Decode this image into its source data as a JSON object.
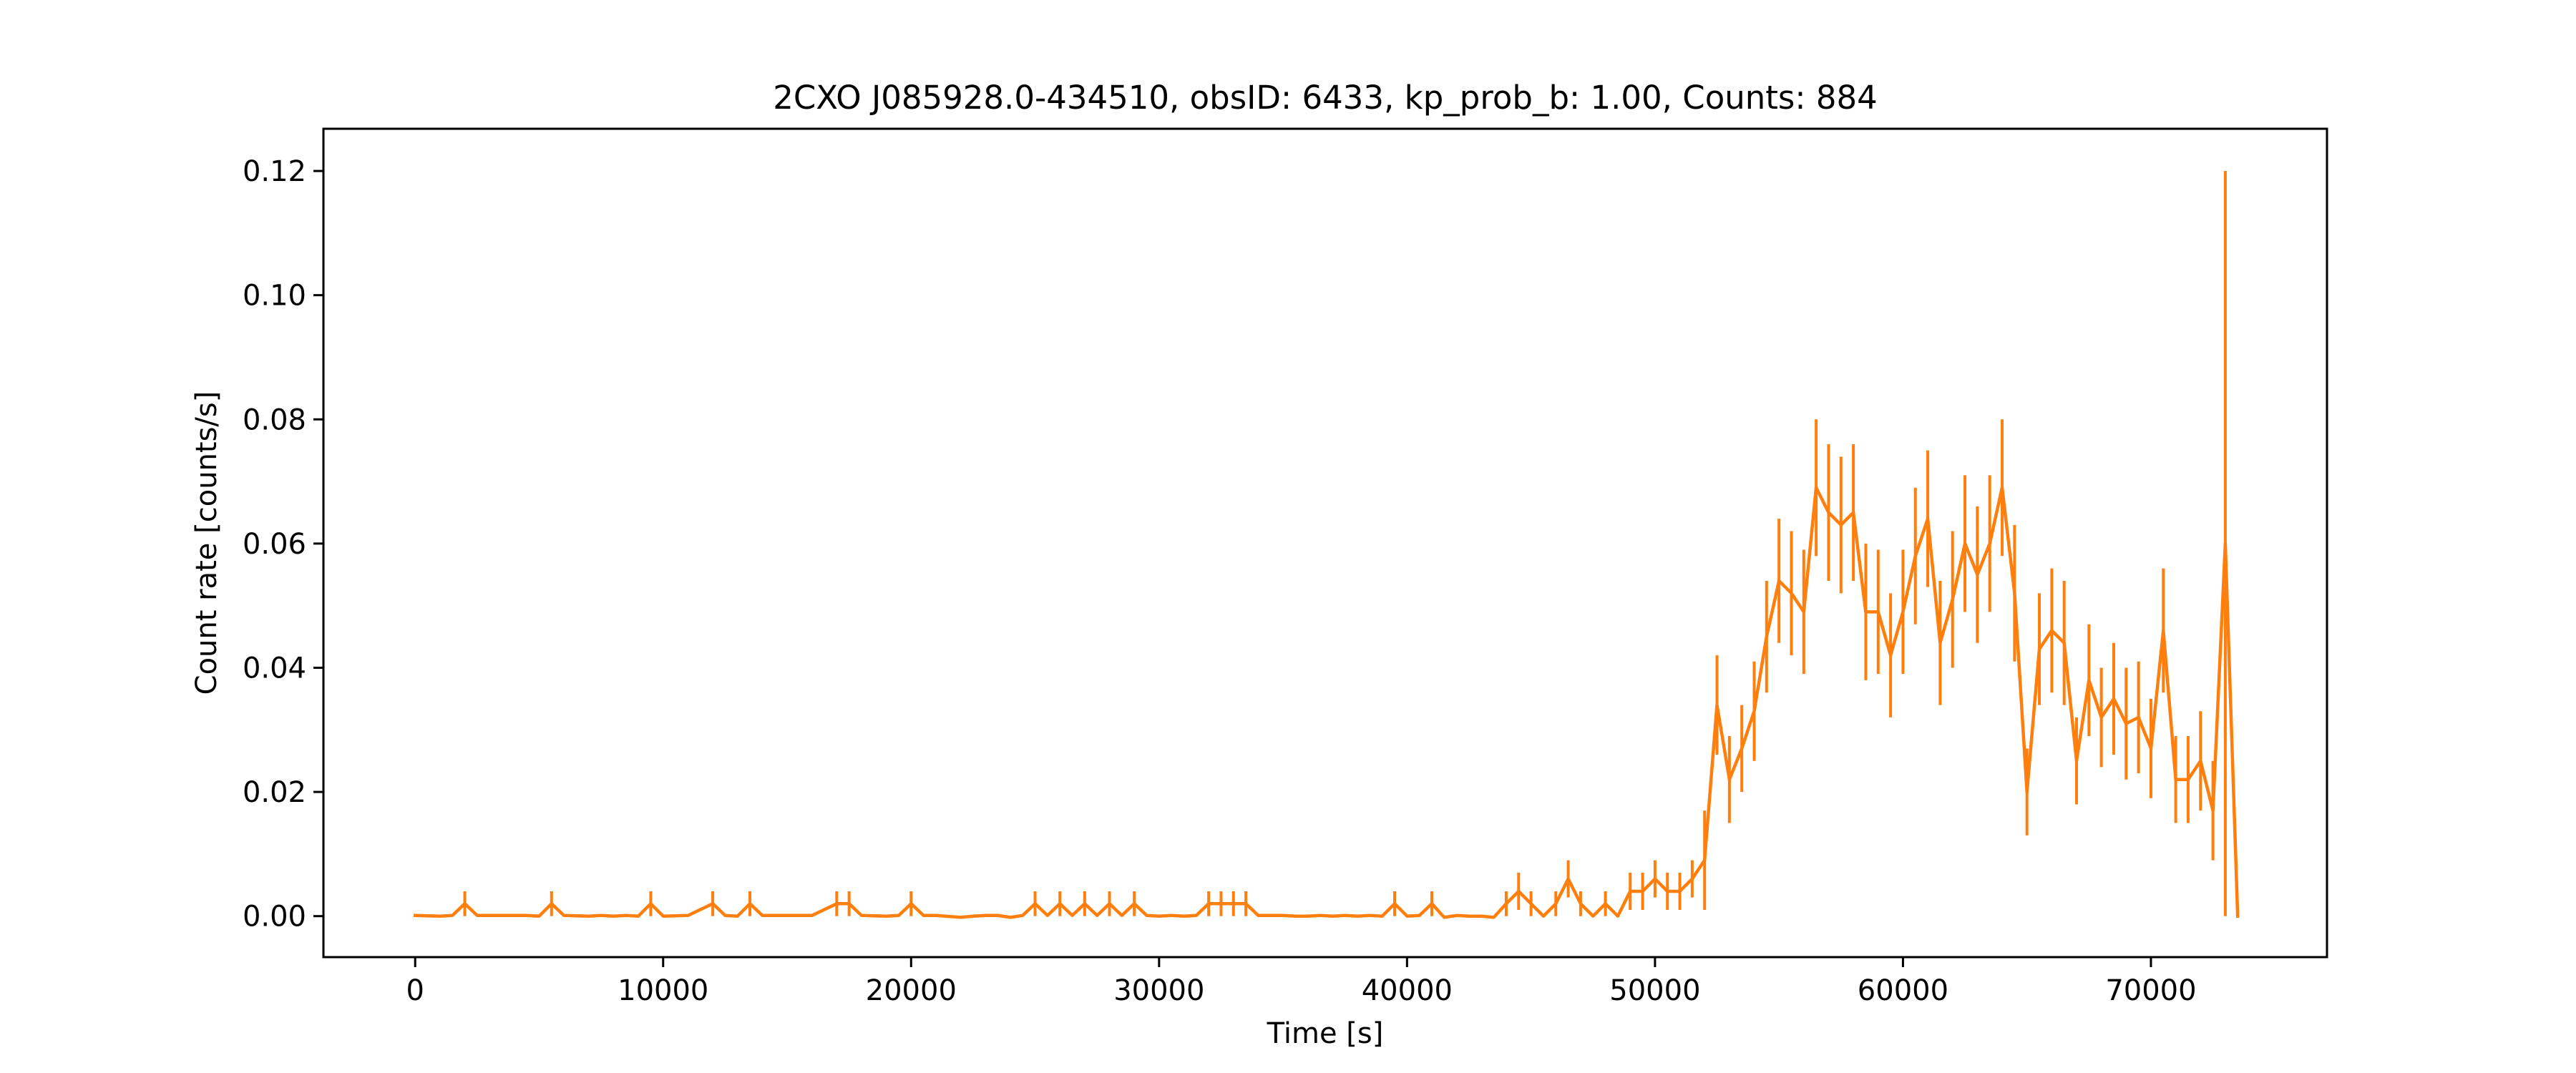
{
  "chart_data": {
    "type": "line",
    "title": "2CXO J085928.0-434510, obsID: 6433, kp_prob_b: 1.00, Counts: 884",
    "xlabel": "Time [s]",
    "ylabel": "Count rate [counts/s]",
    "xlim": [
      -3700,
      77100
    ],
    "ylim": [
      -0.0066,
      0.1268
    ],
    "xticks": [
      0,
      10000,
      20000,
      30000,
      40000,
      50000,
      60000,
      70000
    ],
    "yticks": [
      0.0,
      0.02,
      0.04,
      0.06,
      0.08,
      0.1,
      0.12
    ],
    "grid": false,
    "line_color": "#ff7f0e",
    "series": [
      {
        "x": [
          0,
          1000,
          1500,
          2000,
          2500,
          3500,
          4500,
          5000,
          5500,
          6000,
          7000,
          7500,
          8000,
          8500,
          9000,
          9500,
          10000,
          11000,
          12000,
          12500,
          13000,
          13500,
          14000,
          15000,
          16000,
          17000,
          17500,
          18000,
          19000,
          19500,
          20000,
          20500,
          21000,
          22000,
          22500,
          23000,
          23500,
          24000,
          24500,
          25000,
          25500,
          26000,
          26500,
          27000,
          27500,
          28000,
          28500,
          29000,
          29500,
          30000,
          30500,
          31000,
          31500,
          32000,
          32500,
          33000,
          33500,
          34000,
          35000,
          35500,
          36000,
          36500,
          37000,
          37500,
          38000,
          38500,
          39000,
          39500,
          40000,
          40500,
          41000,
          41500,
          42000,
          42500,
          43000,
          43500,
          44000,
          44500,
          45000,
          45500,
          46000,
          46500,
          47000,
          47500,
          48000,
          48500,
          49000,
          49500,
          50000,
          50500,
          51000,
          51500,
          52000,
          52500,
          53000,
          53500,
          54000,
          54500,
          55000,
          55500,
          56000,
          56500,
          57000,
          57500,
          58000,
          58500,
          59000,
          59500,
          60000,
          60500,
          61000,
          61500,
          62000,
          62500,
          63000,
          63500,
          64000,
          64500,
          65000,
          65500,
          66000,
          66500,
          67000,
          67500,
          68000,
          68500,
          69000,
          69500,
          70000,
          70500,
          71000,
          71500,
          72000,
          72500,
          73000,
          73500
        ],
        "y": [
          0.0001,
          0.0,
          0.0001,
          0.002,
          0.0001,
          0.0001,
          0.0001,
          0.0,
          0.002,
          0.0001,
          0.0,
          0.0001,
          0.0,
          0.0001,
          0.0,
          0.002,
          0.0,
          0.0001,
          0.002,
          0.0001,
          0.0,
          0.002,
          0.0001,
          0.0001,
          0.0001,
          0.002,
          0.002,
          0.0001,
          0.0,
          0.0001,
          0.002,
          0.0001,
          0.0001,
          -0.0002,
          0.0,
          0.0001,
          0.0001,
          -0.0002,
          0.0001,
          0.002,
          0.0001,
          0.002,
          0.0001,
          0.002,
          0.0001,
          0.002,
          0.0001,
          0.002,
          0.0001,
          0.0,
          0.0001,
          0.0,
          0.0001,
          0.002,
          0.002,
          0.002,
          0.002,
          0.0001,
          0.0001,
          0.0,
          0.0,
          0.0001,
          0.0,
          0.0001,
          0.0,
          0.0001,
          0.0,
          0.002,
          0.0,
          0.0001,
          0.002,
          -0.0002,
          0.0001,
          0.0,
          0.0,
          -0.0002,
          0.002,
          0.004,
          0.002,
          0.0,
          0.002,
          0.006,
          0.002,
          0.0,
          0.002,
          0.0,
          0.004,
          0.004,
          0.006,
          0.004,
          0.004,
          0.006,
          0.009,
          0.034,
          0.022,
          0.027,
          0.033,
          0.045,
          0.054,
          0.052,
          0.049,
          0.069,
          0.065,
          0.063,
          0.065,
          0.049,
          0.049,
          0.042,
          0.049,
          0.058,
          0.064,
          0.044,
          0.051,
          0.06,
          0.055,
          0.06,
          0.069,
          0.052,
          0.02,
          0.043,
          0.046,
          0.044,
          0.025,
          0.038,
          0.032,
          0.035,
          0.031,
          0.032,
          0.027,
          0.046,
          0.022,
          0.022,
          0.025,
          0.017,
          0.06,
          0.0
        ],
        "err": [
          0,
          0,
          0,
          0.002,
          0,
          0,
          0,
          0,
          0.002,
          0,
          0,
          0,
          0,
          0,
          0,
          0.002,
          0,
          0,
          0.002,
          0,
          0,
          0.002,
          0,
          0,
          0,
          0.002,
          0.002,
          0,
          0,
          0,
          0.002,
          0,
          0,
          0,
          0,
          0,
          0,
          0,
          0,
          0.002,
          0,
          0.002,
          0,
          0.002,
          0,
          0.002,
          0,
          0.002,
          0,
          0,
          0,
          0,
          0,
          0.002,
          0.002,
          0.002,
          0.002,
          0,
          0,
          0,
          0,
          0,
          0,
          0,
          0,
          0,
          0,
          0.002,
          0,
          0,
          0.002,
          0,
          0,
          0,
          0,
          0,
          0.002,
          0.003,
          0.002,
          0,
          0.002,
          0.003,
          0.002,
          0,
          0.002,
          0,
          0.003,
          0.003,
          0.003,
          0.003,
          0.003,
          0.003,
          0.008,
          0.008,
          0.007,
          0.007,
          0.008,
          0.009,
          0.01,
          0.01,
          0.01,
          0.011,
          0.011,
          0.011,
          0.011,
          0.011,
          0.01,
          0.01,
          0.01,
          0.011,
          0.011,
          0.01,
          0.011,
          0.011,
          0.011,
          0.011,
          0.011,
          0.011,
          0.007,
          0.009,
          0.01,
          0.01,
          0.007,
          0.009,
          0.008,
          0.009,
          0.009,
          0.009,
          0.008,
          0.01,
          0.007,
          0.007,
          0.008,
          0.008,
          0.06,
          0.0
        ]
      }
    ]
  }
}
